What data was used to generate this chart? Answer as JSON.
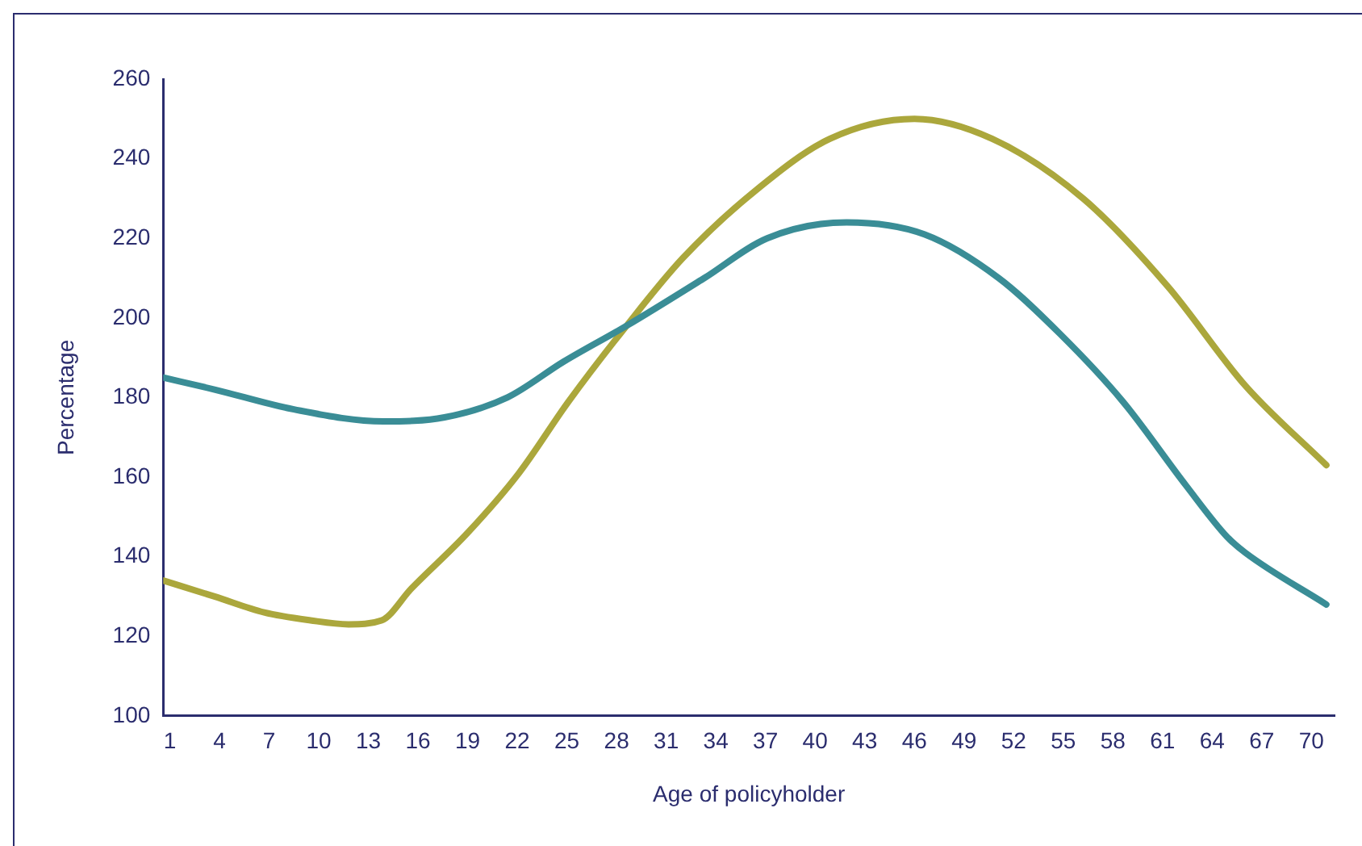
{
  "chart_data": {
    "type": "line",
    "xlabel": "Age of policyholder",
    "ylabel": "Percentage",
    "xlim": [
      0.6,
      71.4
    ],
    "xticks": [
      1,
      4,
      7,
      10,
      13,
      16,
      19,
      22,
      25,
      28,
      31,
      34,
      37,
      40,
      43,
      46,
      49,
      52,
      55,
      58,
      61,
      64,
      67,
      70
    ],
    "ylim": [
      100,
      260
    ],
    "yticks": [
      100,
      120,
      140,
      160,
      180,
      200,
      220,
      240,
      260
    ],
    "grid": false,
    "legend": false,
    "marker": "none",
    "line_style": "solid",
    "series": [
      {
        "color": "#3a8d96",
        "x": [
          0.6,
          3.7,
          8.5,
          13.9,
          17.6,
          21.4,
          24.8,
          28.6,
          33.3,
          37.1,
          41.9,
          46.6,
          51.1,
          54.8,
          58.6,
          62.4,
          64.9,
          66,
          70.9
        ],
        "values": [
          185,
          182,
          177,
          174,
          175,
          180,
          189,
          198,
          210,
          220,
          224,
          221,
          210,
          196,
          179,
          158,
          145,
          141,
          128
        ]
      },
      {
        "color": "#aba73c",
        "x": [
          0.6,
          3.7,
          6.7,
          9.5,
          11.8,
          13.8,
          15.6,
          19,
          22.1,
          25.1,
          28.6,
          32,
          36.4,
          40.9,
          46,
          50.7,
          56.2,
          61.3,
          66,
          70.9
        ],
        "values": [
          134,
          130,
          126,
          124,
          123,
          124,
          132,
          146,
          161,
          179,
          198,
          215,
          232,
          245,
          250,
          245,
          230,
          208,
          183,
          163
        ]
      }
    ]
  }
}
